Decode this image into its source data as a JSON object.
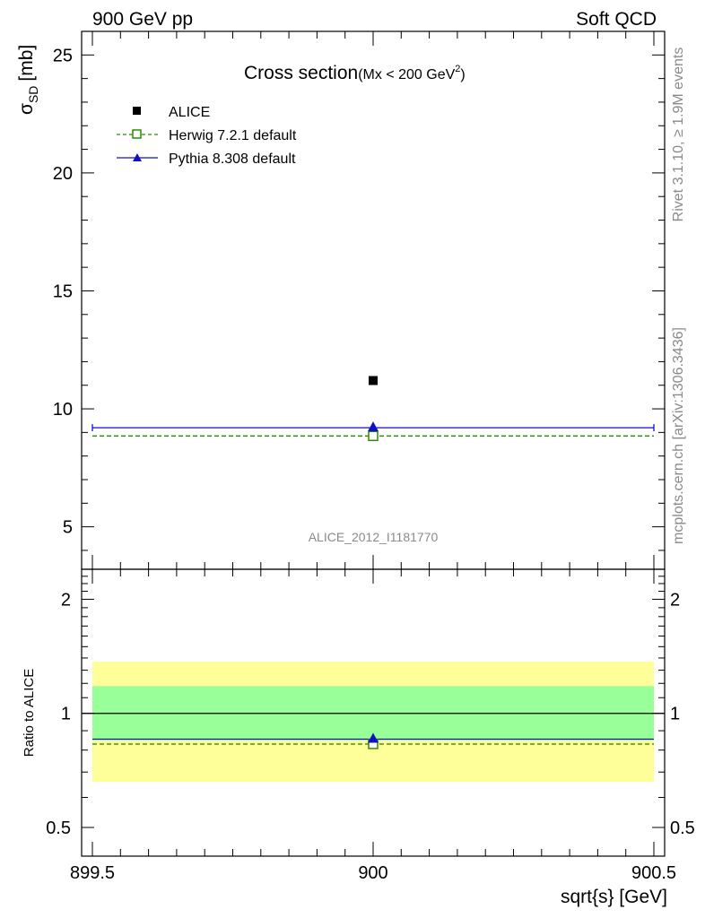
{
  "header": {
    "left": "900 GeV pp",
    "right": "Soft QCD"
  },
  "title": {
    "main": "Cross section",
    "sub": "(Mx < 200 GeV",
    "sup": "2",
    "close": ")"
  },
  "side_labels": {
    "rivet": "Rivet 3.1.10, ≥ 1.9M events",
    "mcplots": "mcplots.cern.ch [arXiv:1306.3436]"
  },
  "watermark": "ALICE_2012_I1181770",
  "colors": {
    "alice": "#000000",
    "herwig": "#2e8b00",
    "pythia": "#1010c8",
    "band_inner": "#99ff99",
    "band_outer": "#ffff99"
  },
  "chart_data": [
    {
      "type": "scatter",
      "panel": "main",
      "ylabel": "σ",
      "ylabel_sub": "SD",
      "ylabel_unit": "[mb]",
      "xlim": [
        899.5,
        900.5
      ],
      "ylim": [
        3.2,
        26
      ],
      "yticks": [
        5,
        10,
        15,
        20,
        25
      ],
      "ytick_labels": [
        "5",
        "10",
        "15",
        "20",
        "25"
      ],
      "legend_position": "top-left",
      "series": [
        {
          "name": "ALICE",
          "marker": "filled-square",
          "x": [
            900
          ],
          "y": [
            11.2
          ]
        },
        {
          "name": "Herwig 7.2.1 default",
          "marker": "open-square",
          "line": "dashed",
          "x": [
            900
          ],
          "y": [
            8.85
          ]
        },
        {
          "name": "Pythia 8.308 default",
          "marker": "filled-triangle",
          "line": "solid",
          "x": [
            900
          ],
          "y": [
            9.2
          ]
        }
      ]
    },
    {
      "type": "line",
      "panel": "ratio",
      "ylabel": "Ratio to ALICE",
      "xlabel": "sqrt{s} [GeV]",
      "xlim": [
        899.5,
        900.5
      ],
      "ylim": [
        0.42,
        2.4
      ],
      "xticks": [
        899.5,
        900,
        900.5
      ],
      "xtick_labels": [
        "899.5",
        "900",
        "900.5"
      ],
      "yticks": [
        0.5,
        1,
        2
      ],
      "ytick_labels": [
        "0.5",
        "1",
        "2"
      ],
      "bands": {
        "inner": [
          0.85,
          1.18
        ],
        "outer": [
          0.66,
          1.37
        ]
      },
      "series": [
        {
          "name": "Herwig 7.2.1 default",
          "x": [
            900
          ],
          "y": [
            0.83
          ]
        },
        {
          "name": "Pythia 8.308 default",
          "x": [
            900
          ],
          "y": [
            0.855
          ]
        }
      ]
    }
  ]
}
